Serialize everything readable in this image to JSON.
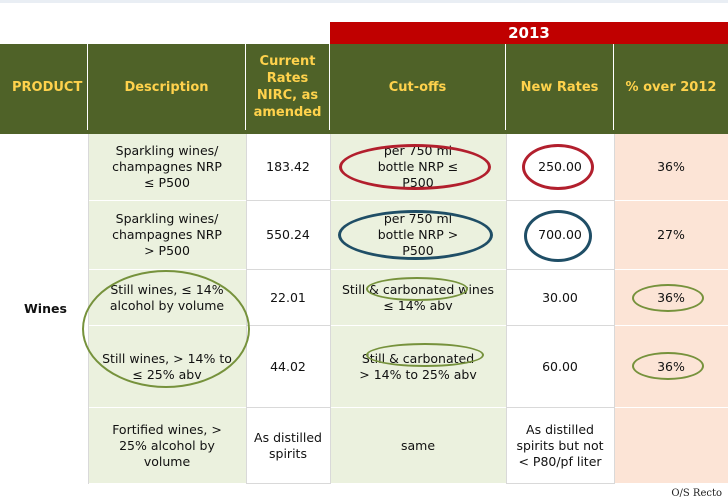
{
  "table": {
    "year": "2013",
    "headers": {
      "product": "PRODUCT",
      "description": "Description",
      "current_rates": "Current Rates NIRC, as amended",
      "cutoffs": "Cut-offs",
      "new_rates": "New Rates",
      "pct_over": "% over 2012"
    },
    "product": "Wines",
    "rows": [
      {
        "description": "Sparkling wines/ champagnes NRP ≤ P500",
        "current": "183.42",
        "cutoff": "per 750 ml bottle NRP ≤ P500",
        "new_rate": "250.00",
        "pct": "36%"
      },
      {
        "description": "Sparkling wines/ champagnes NRP > P500",
        "current": "550.24",
        "cutoff": "per 750 ml bottle NRP > P500",
        "new_rate": "700.00",
        "pct": "27%"
      },
      {
        "description": "Still wines, ≤ 14% alcohol by volume",
        "current": "22.01",
        "cutoff": "Still & carbonated wines ≤ 14% abv",
        "new_rate": "30.00",
        "pct": "36%"
      },
      {
        "description": "Still wines, > 14% to ≤ 25% abv",
        "current": "44.02",
        "cutoff": "Still & carbonated > 14% to 25% abv",
        "new_rate": "60.00",
        "pct": "36%"
      },
      {
        "description": "Fortified wines, > 25% alcohol by volume",
        "current": "As distilled spirits",
        "cutoff": "same",
        "new_rate": "As distilled spirits but not < P80/pf liter",
        "pct": ""
      }
    ]
  },
  "footer": {
    "label": "O/S Recto"
  },
  "colors": {
    "header_bg": "#4f6228",
    "header_text": "#ffd24c",
    "year_bg": "#c00000",
    "cell_green": "#ebf1de",
    "cell_peach": "#fce4d6",
    "highlight_red": "#b21f2d",
    "highlight_navy": "#1f4e66",
    "highlight_olive": "#76923c"
  }
}
